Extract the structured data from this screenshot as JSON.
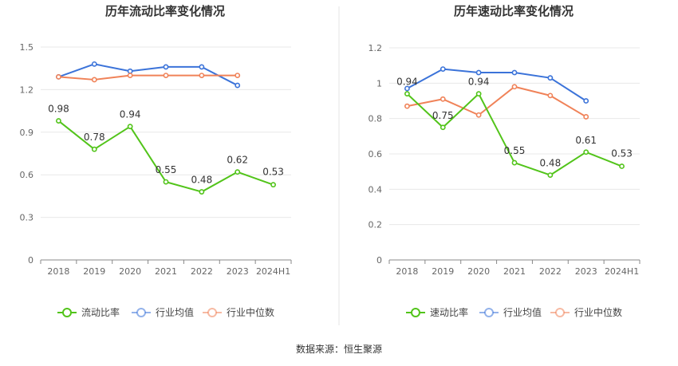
{
  "source": "数据来源：恒生聚源",
  "chart_data": [
    {
      "type": "line",
      "title": "历年流动比率变化情况",
      "categories": [
        "2018",
        "2019",
        "2020",
        "2021",
        "2022",
        "2023",
        "2024H1"
      ],
      "yticks": [
        "0",
        "0.3",
        "0.6",
        "0.9",
        "1.2",
        "1.5"
      ],
      "ylim": [
        0,
        1.5
      ],
      "grid": true,
      "legend_position": "bottom",
      "series": [
        {
          "name": "流动比率",
          "color": "#52c41a",
          "values": [
            0.98,
            0.78,
            0.94,
            0.55,
            0.48,
            0.62,
            0.53
          ],
          "labels": [
            "0.98",
            "0.78",
            "0.94",
            "0.55",
            "0.48",
            "0.62",
            "0.53"
          ]
        },
        {
          "name": "行业均值",
          "color": "#3b73d9",
          "values": [
            1.29,
            1.38,
            1.33,
            1.36,
            1.36,
            1.23,
            null
          ]
        },
        {
          "name": "行业中位数",
          "color": "#f08258",
          "values": [
            1.29,
            1.27,
            1.3,
            1.3,
            1.3,
            1.3,
            null
          ]
        }
      ]
    },
    {
      "type": "line",
      "title": "历年速动比率变化情况",
      "categories": [
        "2018",
        "2019",
        "2020",
        "2021",
        "2022",
        "2023",
        "2024H1"
      ],
      "yticks": [
        "0",
        "0.2",
        "0.4",
        "0.6",
        "0.8",
        "1",
        "1.2"
      ],
      "ylim": [
        0,
        1.2
      ],
      "grid": true,
      "legend_position": "bottom",
      "series": [
        {
          "name": "速动比率",
          "color": "#52c41a",
          "values": [
            0.94,
            0.75,
            0.94,
            0.55,
            0.48,
            0.61,
            0.53
          ],
          "labels": [
            "0.94",
            "0.75",
            "0.94",
            "0.55",
            "0.48",
            "0.61",
            "0.53"
          ]
        },
        {
          "name": "行业均值",
          "color": "#3b73d9",
          "values": [
            0.97,
            1.08,
            1.06,
            1.06,
            1.03,
            0.9,
            null
          ]
        },
        {
          "name": "行业中位数",
          "color": "#f08258",
          "values": [
            0.87,
            0.91,
            0.82,
            0.98,
            0.93,
            0.81,
            null
          ]
        }
      ]
    }
  ]
}
